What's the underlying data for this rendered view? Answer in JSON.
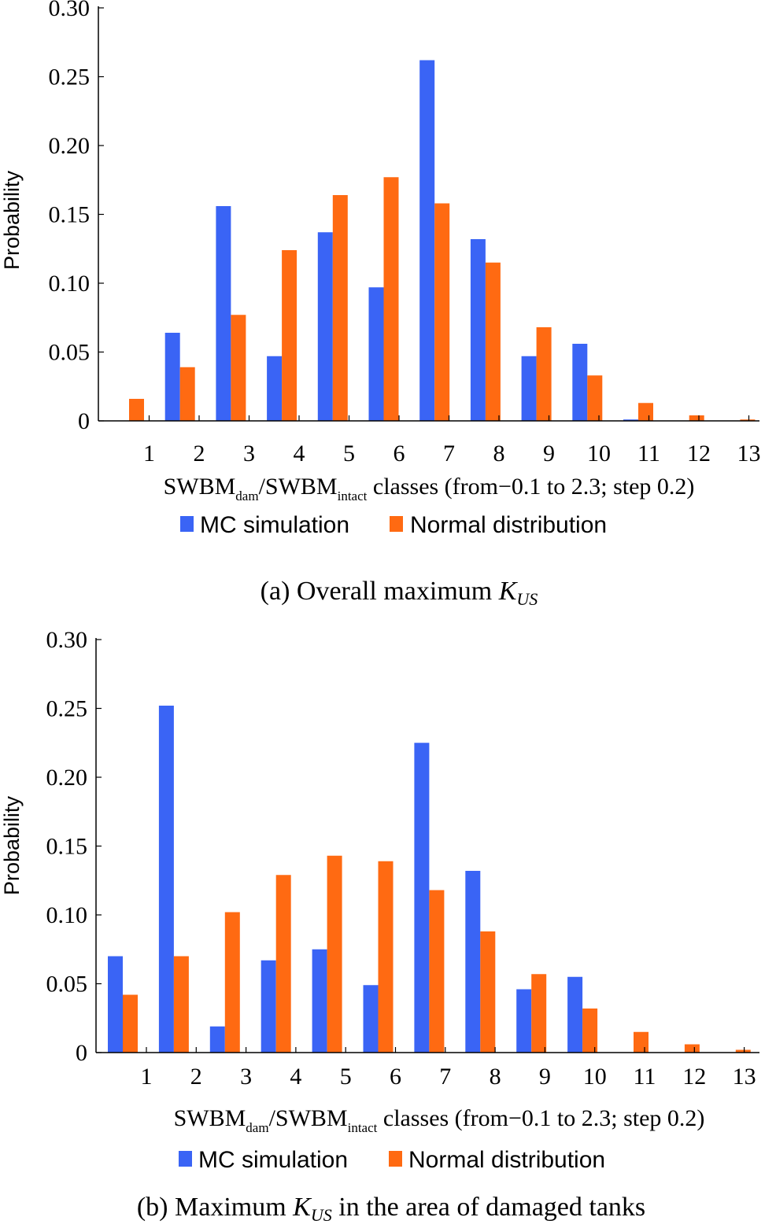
{
  "colors": {
    "mc": "#3a64f5",
    "normal": "#ff6a12"
  },
  "chart_data": [
    {
      "type": "bar",
      "panel": "a",
      "caption": {
        "prefix": "(a) Overall maximum ",
        "k": "K",
        "sub": "US",
        "suffix": ""
      },
      "categories": [
        "1",
        "2",
        "3",
        "4",
        "5",
        "6",
        "7",
        "8",
        "9",
        "10",
        "11",
        "12",
        "13"
      ],
      "series": [
        {
          "name": "MC simulation",
          "values": [
            0,
            0.064,
            0.156,
            0.047,
            0.137,
            0.097,
            0.262,
            0.132,
            0.047,
            0.056,
            0.001,
            0,
            0
          ]
        },
        {
          "name": "Normal distribution",
          "values": [
            0.016,
            0.039,
            0.077,
            0.124,
            0.164,
            0.177,
            0.158,
            0.115,
            0.068,
            0.033,
            0.013,
            0.004,
            0.001
          ]
        }
      ],
      "yticks": [
        "0",
        "0.05",
        "0.10",
        "0.15",
        "0.20",
        "0.25",
        "0.30"
      ],
      "ylim": [
        0,
        0.3
      ],
      "ylabel": "Probability",
      "xlabel": {
        "pre": "SWBM",
        "sub1": "dam",
        "mid": "/SWBM",
        "sub2": "intact",
        "post": " classes (from−0.1 to 2.3; step 0.2)"
      },
      "legend": [
        "MC simulation",
        "Normal distribution"
      ]
    },
    {
      "type": "bar",
      "panel": "b",
      "caption": {
        "prefix": "(b) Maximum ",
        "k": "K",
        "sub": "US",
        "suffix": " in the area of damaged tanks"
      },
      "categories": [
        "1",
        "2",
        "3",
        "4",
        "5",
        "6",
        "7",
        "8",
        "9",
        "10",
        "11",
        "12",
        "13"
      ],
      "series": [
        {
          "name": "MC simulation",
          "values": [
            0.07,
            0.252,
            0.019,
            0.067,
            0.075,
            0.049,
            0.225,
            0.132,
            0.046,
            0.055,
            0,
            0,
            0
          ]
        },
        {
          "name": "Normal distribution",
          "values": [
            0.042,
            0.07,
            0.102,
            0.129,
            0.143,
            0.139,
            0.118,
            0.088,
            0.057,
            0.032,
            0.015,
            0.006,
            0.002
          ]
        }
      ],
      "yticks": [
        "0",
        "0.05",
        "0.10",
        "0.15",
        "0.20",
        "0.25",
        "0.30"
      ],
      "ylim": [
        0,
        0.3
      ],
      "ylabel": "Probability",
      "xlabel": {
        "pre": "SWBM",
        "sub1": "dam",
        "mid": "/SWBM",
        "sub2": "intact",
        "post": " classes (from−0.1 to 2.3; step 0.2)"
      },
      "legend": [
        "MC simulation",
        "Normal distribution"
      ]
    }
  ]
}
